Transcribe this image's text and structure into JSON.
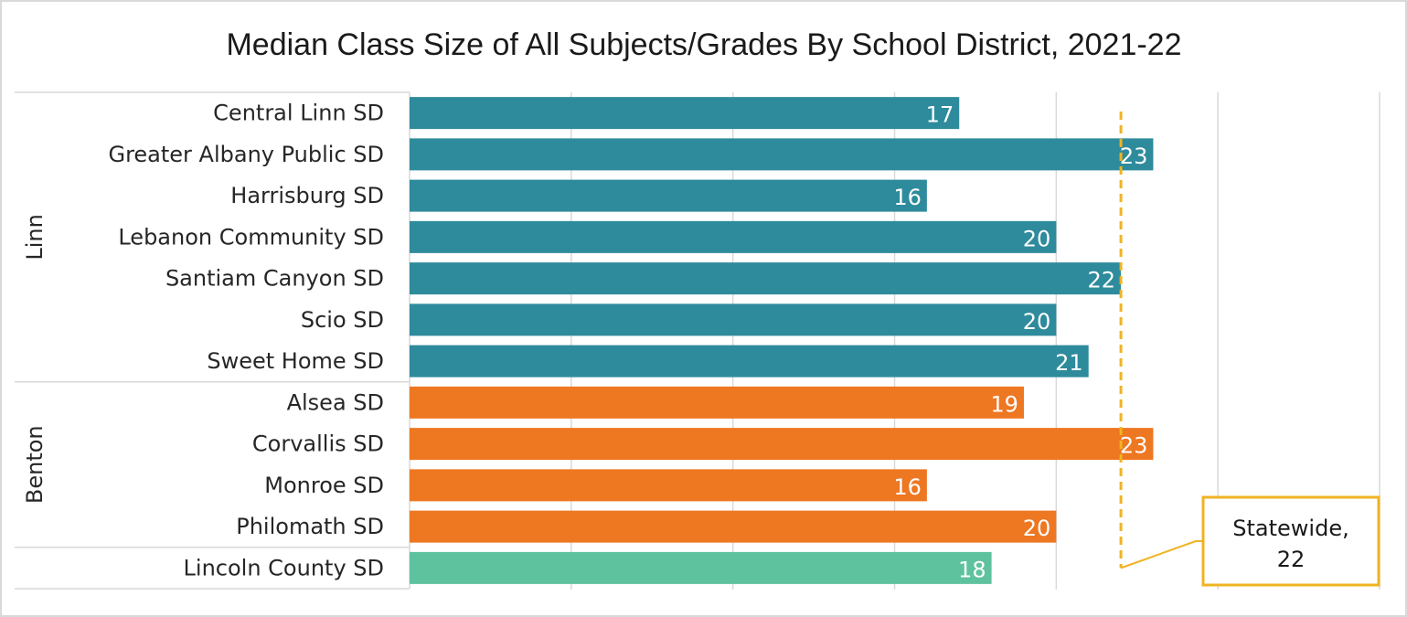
{
  "chart_data": {
    "type": "bar",
    "orientation": "horizontal",
    "title": "Median Class Size of All Subjects/Grades By School District, 2021-22",
    "xlim": [
      0,
      30
    ],
    "grid": true,
    "groups": [
      {
        "name": "Linn",
        "color": "#2e8b9c",
        "start": 0,
        "end": 7
      },
      {
        "name": "Benton",
        "color": "#ee7722",
        "start": 7,
        "end": 11
      },
      {
        "name": "",
        "color": "#5fc29f",
        "start": 11,
        "end": 12
      }
    ],
    "categories": [
      "Central Linn SD",
      "Greater Albany Public SD",
      "Harrisburg SD",
      "Lebanon Community SD",
      "Santiam Canyon SD",
      "Scio SD",
      "Sweet Home SD",
      "Alsea SD",
      "Corvallis SD",
      "Monroe SD",
      "Philomath SD",
      "Lincoln County SD"
    ],
    "values": [
      17,
      23,
      16,
      20,
      22,
      20,
      21,
      19,
      23,
      16,
      20,
      18
    ],
    "data_labels": [
      "17",
      "23",
      "16",
      "20",
      "22",
      "20",
      "21",
      "19",
      "23",
      "16",
      "20",
      "18"
    ],
    "reference_line": {
      "value": 22,
      "color": "#f0b323",
      "label_line1": "Statewide,",
      "label_line2": "22"
    }
  }
}
